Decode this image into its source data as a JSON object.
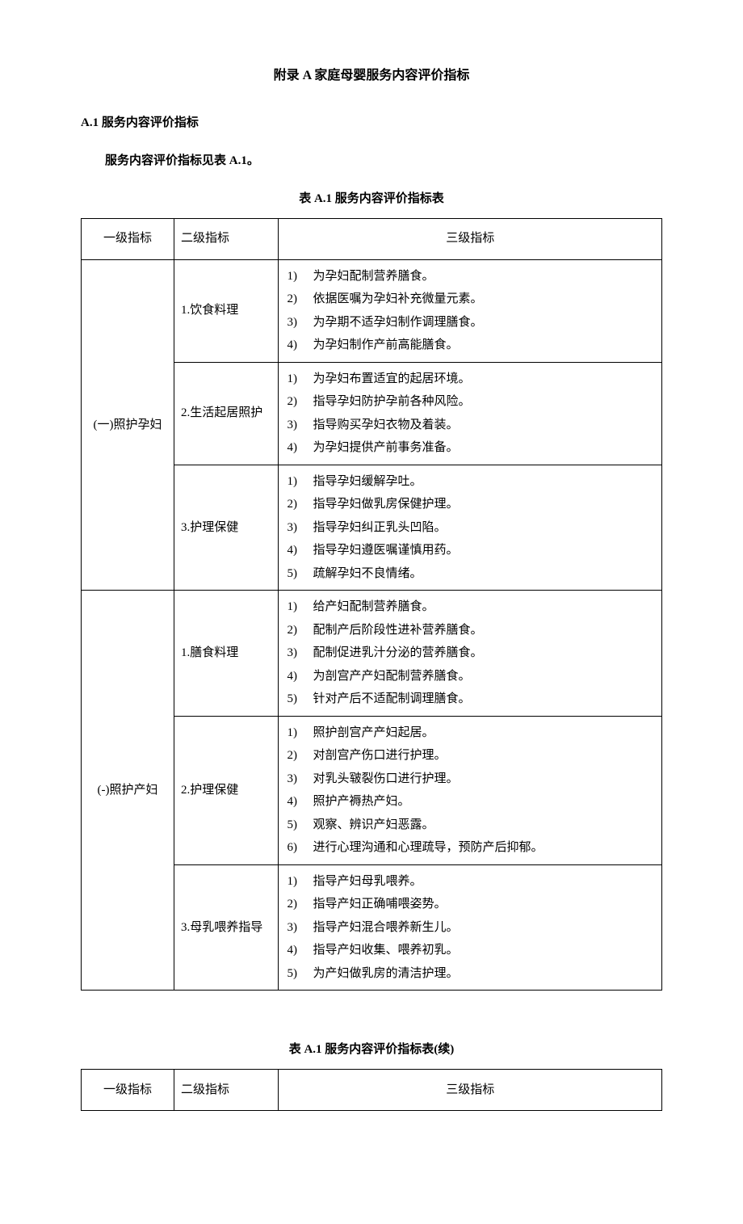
{
  "title": "附录 A 家庭母婴服务内容评价指标",
  "section_heading": "A.1 服务内容评价指标",
  "intro": "服务内容评价指标见表 A.1。",
  "table1_caption": "表 A.1 服务内容评价指标表",
  "table2_caption": "表 A.1 服务内容评价指标表(续)",
  "headers": {
    "l1": "一级指标",
    "l2": "二级指标",
    "l3": "三级指标"
  },
  "groups": [
    {
      "l1": "(一)照护孕妇",
      "rows": [
        {
          "l2": "1.饮食料理",
          "items": [
            "为孕妇配制营养膳食。",
            "依据医嘱为孕妇补充微量元素。",
            "为孕期不适孕妇制作调理膳食。",
            "为孕妇制作产前高能膳食。"
          ]
        },
        {
          "l2": "2.生活起居照护",
          "items": [
            "为孕妇布置适宜的起居环境。",
            "指导孕妇防护孕前各种风险。",
            "指导购买孕妇衣物及着装。",
            "为孕妇提供产前事务准备。"
          ]
        },
        {
          "l2": "3.护理保健",
          "items": [
            "指导孕妇缓解孕吐。",
            "指导孕妇做乳房保健护理。",
            "指导孕妇纠正乳头凹陷。",
            "指导孕妇遵医嘱谨慎用药。",
            "疏解孕妇不良情绪。"
          ]
        }
      ]
    },
    {
      "l1": "(-)照护产妇",
      "rows": [
        {
          "l2": "1.膳食料理",
          "items": [
            "给产妇配制营养膳食。",
            "配制产后阶段性进补营养膳食。",
            "配制促进乳汁分泌的营养膳食。",
            "为剖宫产产妇配制营养膳食。",
            "针对产后不适配制调理膳食。"
          ]
        },
        {
          "l2": "2.护理保健",
          "items": [
            "照护剖宫产产妇起居。",
            "对剖宫产伤口进行护理。",
            "对乳头皲裂伤口进行护理。",
            "照护产褥热产妇。",
            "观察、辨识产妇恶露。",
            "进行心理沟通和心理疏导，预防产后抑郁。"
          ]
        },
        {
          "l2": "3.母乳喂养指导",
          "items": [
            "指导产妇母乳喂养。",
            "指导产妇正确哺喂姿势。",
            "指导产妇混合喂养新生儿。",
            "指导产妇收集、喂养初乳。",
            "为产妇做乳房的清洁护理。"
          ]
        }
      ]
    }
  ]
}
